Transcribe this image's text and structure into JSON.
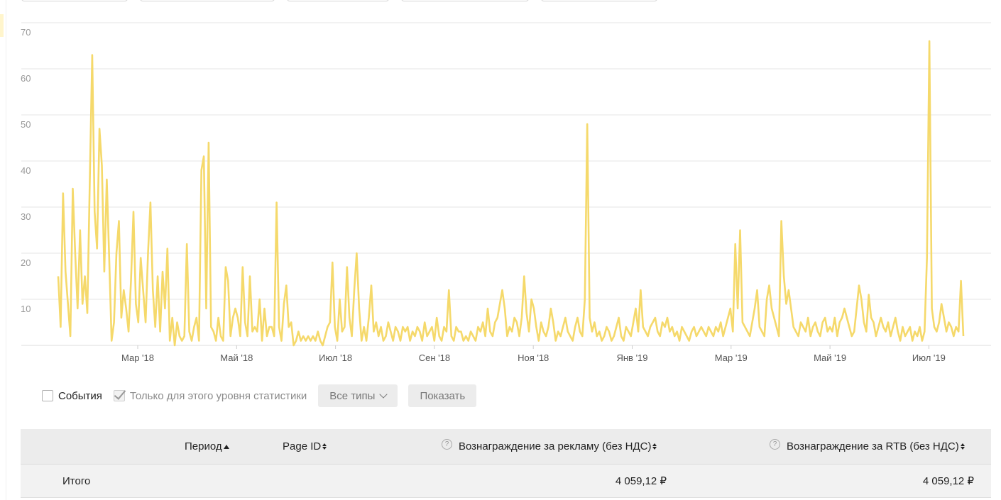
{
  "chart_data": {
    "type": "line",
    "color": "#f5d96b",
    "ylim": [
      0,
      70
    ],
    "y_ticks": [
      "70",
      "60",
      "50",
      "40",
      "30",
      "20",
      "10"
    ],
    "x_ticks": [
      "Мар '18",
      "Май '18",
      "Июл '18",
      "Сен '18",
      "Ноя '18",
      "Янв '19",
      "Мар '19",
      "Май '19",
      "Июл '19"
    ],
    "grid": true,
    "series": [
      {
        "values": [
          15,
          4,
          33,
          16,
          9,
          2,
          34,
          20,
          8,
          25,
          9,
          15,
          7,
          35,
          63,
          29,
          21,
          47,
          39,
          16,
          36,
          19,
          1,
          5,
          20,
          27,
          6,
          12,
          8,
          3,
          14,
          29,
          9,
          5,
          19,
          12,
          5,
          20,
          31,
          12,
          4,
          15,
          3,
          16,
          8,
          21,
          1,
          6,
          0,
          5,
          2,
          1,
          2,
          22,
          3,
          1,
          4,
          6,
          1,
          38,
          41,
          8,
          44,
          4,
          3,
          1,
          6,
          2,
          1,
          17,
          14,
          2,
          6,
          8,
          6,
          2,
          17,
          5,
          2,
          15,
          3,
          4,
          3,
          10,
          1,
          8,
          2,
          4,
          4,
          2,
          31,
          4,
          1,
          9,
          13,
          4,
          5,
          0,
          1,
          3,
          1,
          2,
          1,
          2,
          1,
          2,
          1,
          3,
          1,
          0,
          2,
          4,
          5,
          18,
          4,
          1,
          10,
          3,
          4,
          17,
          6,
          2,
          12,
          20,
          8,
          1,
          4,
          1,
          6,
          13,
          3,
          5,
          2,
          4,
          1,
          2,
          5,
          3,
          1,
          4,
          3,
          1,
          4,
          3,
          4,
          1,
          3,
          2,
          4,
          3,
          1,
          5,
          2,
          3,
          4,
          1,
          6,
          2,
          1,
          4,
          3,
          12,
          2,
          1,
          4,
          3,
          3,
          1,
          2,
          1,
          3,
          2,
          1,
          4,
          3,
          5,
          2,
          8,
          3,
          2,
          5,
          6,
          9,
          12,
          8,
          2,
          4,
          3,
          6,
          5,
          2,
          6,
          15,
          7,
          3,
          10,
          8,
          4,
          1,
          5,
          3,
          2,
          4,
          8,
          5,
          1,
          3,
          2,
          4,
          6,
          3,
          2,
          1,
          4,
          6,
          3,
          2,
          10,
          48,
          6,
          3,
          5,
          2,
          3,
          1,
          2,
          4,
          3,
          1,
          2,
          4,
          6,
          2,
          1,
          4,
          3,
          2,
          5,
          8,
          3,
          12,
          4,
          3,
          2,
          4,
          5,
          6,
          3,
          2,
          5,
          4,
          6,
          3,
          4,
          2,
          3,
          1,
          4,
          3,
          2,
          1,
          3,
          4,
          2,
          3,
          4,
          3,
          2,
          4,
          3,
          2,
          4,
          3,
          5,
          2,
          4,
          6,
          8,
          3,
          22,
          8,
          25,
          5,
          4,
          3,
          2,
          5,
          8,
          12,
          4,
          3,
          2,
          10,
          13,
          8,
          6,
          4,
          2,
          27,
          15,
          9,
          12,
          8,
          4,
          3,
          2,
          5,
          4,
          3,
          6,
          2,
          4,
          5,
          3,
          2,
          5,
          6,
          3,
          4,
          3,
          6,
          2,
          5,
          6,
          8,
          6,
          4,
          2,
          3,
          8,
          13,
          10,
          5,
          3,
          11,
          6,
          5,
          2,
          4,
          6,
          4,
          3,
          5,
          2,
          4,
          6,
          3,
          1,
          4,
          2,
          3,
          4,
          1,
          3,
          2,
          4,
          1,
          3,
          19,
          66,
          8,
          4,
          3,
          5,
          9,
          6,
          3,
          5,
          4,
          2,
          4,
          3,
          14,
          2
        ]
      }
    ]
  },
  "controls": {
    "events_label": "События",
    "level_only_label": "Только для этого уровня статистики",
    "all_types_label": "Все типы",
    "show_label": "Показать"
  },
  "table": {
    "headers": {
      "period": "Период",
      "page_id": "Page ID",
      "ad_reward": "Вознаграждение за рекламу (без НДС)",
      "rtb_reward": "Вознаграждение за RTB (без НДС)",
      "help_glyph": "?"
    },
    "total_row": {
      "label": "Итого",
      "ad_reward": "4 059,12 ₽",
      "rtb_reward": "4 059,12 ₽"
    }
  }
}
